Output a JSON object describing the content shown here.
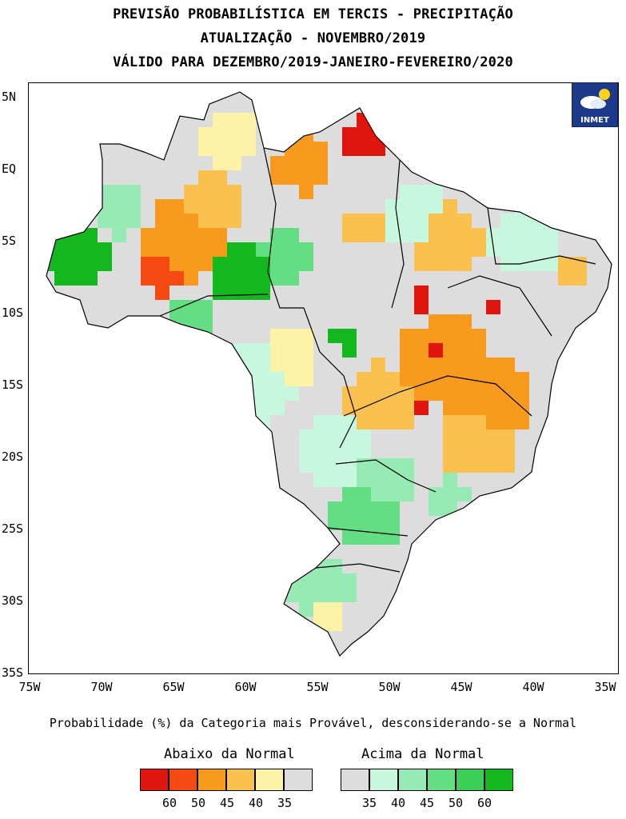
{
  "title": {
    "line1": "PREVISÃO PROBABILÍSTICA EM TERCIS - PRECIPITAÇÃO",
    "line2": "ATUALIZAÇÃO - NOVEMBRO/2019",
    "line3": "VÁLIDO PARA DEZEMBRO/2019-JANEIRO-FEVEREIRO/2020"
  },
  "logo": {
    "text": "INMET",
    "icon": "sun-cloud-icon"
  },
  "axes": {
    "lat_labels": [
      "5N",
      "EQ",
      "5S",
      "10S",
      "15S",
      "20S",
      "25S",
      "30S",
      "35S"
    ],
    "lon_labels": [
      "75W",
      "70W",
      "65W",
      "60W",
      "55W",
      "50W",
      "45W",
      "40W",
      "35W"
    ]
  },
  "caption": "Probabilidade (%) da Categoria mais Provável, desconsiderando-se a Normal",
  "legend": {
    "below": {
      "title": "Abaixo da Normal",
      "colors": [
        "#e0150e",
        "#f54b12",
        "#f79a1e",
        "#fbc14e",
        "#fdf2a6",
        "#dddddd"
      ],
      "labels": [
        "60",
        "50",
        "45",
        "40",
        "35"
      ]
    },
    "above": {
      "title": "Acima da Normal",
      "colors": [
        "#dddddd",
        "#c8f7e0",
        "#96eab4",
        "#63de82",
        "#3ccf58",
        "#12b81e"
      ],
      "labels": [
        "35",
        "40",
        "45",
        "50",
        "60"
      ]
    }
  },
  "map_colors": {
    "below_60": "#e0150e",
    "below_50": "#f54b12",
    "below_45": "#f79a1e",
    "below_40": "#fbc14e",
    "below_35": "#fdf2a6",
    "neutral": "#dddddd",
    "above_40": "#c8f7e0",
    "above_45": "#96eab4",
    "above_50": "#63de82",
    "above_60": "#12b81e",
    "border": "#000000"
  }
}
